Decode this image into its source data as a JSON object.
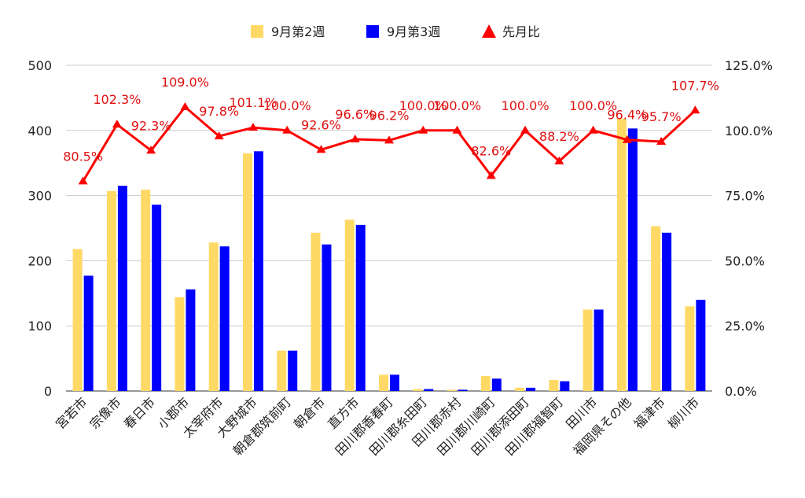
{
  "chart_data": {
    "type": "bar",
    "categories": [
      "宮若市",
      "宗像市",
      "春日市",
      "小郡市",
      "太宰府市",
      "大野城市",
      "朝倉郡筑前町",
      "朝倉市",
      "直方市",
      "田川郡香春町",
      "田川郡糸田町",
      "田川郡赤村",
      "田川郡川崎町",
      "田川郡添田町",
      "田川郡福智町",
      "田川市",
      "福岡県その他",
      "福津市",
      "柳川市"
    ],
    "series": [
      {
        "name": "9月第2週",
        "color": "#ffd966",
        "axis": "left",
        "values": [
          218,
          307,
          309,
          144,
          228,
          365,
          62,
          243,
          263,
          25,
          3,
          2,
          23,
          5,
          17,
          125,
          418,
          253,
          130
        ]
      },
      {
        "name": "9月第3週",
        "color": "#0000ff",
        "axis": "left",
        "values": [
          177,
          315,
          286,
          156,
          222,
          368,
          62,
          225,
          255,
          25,
          3,
          2,
          19,
          5,
          15,
          125,
          403,
          243,
          140
        ]
      },
      {
        "name": "先月比",
        "type": "line",
        "color": "#ff0000",
        "axis": "right",
        "values": [
          80.5,
          102.3,
          92.3,
          109.0,
          97.8,
          101.1,
          100.0,
          92.6,
          96.6,
          96.2,
          100.0,
          100.0,
          82.6,
          100.0,
          88.2,
          100.0,
          96.4,
          95.7,
          107.7
        ],
        "labels": [
          "80.5%",
          "102.3%",
          "92.3%",
          "109.0%",
          "97.8%",
          "101.1%",
          "100.0%",
          "92.6%",
          "96.6%",
          "96.2%",
          "100.0%",
          "100.0%",
          "82.6%",
          "100.0%",
          "88.2%",
          "100.0%",
          "96.4%",
          "95.7%",
          "107.7%"
        ]
      }
    ],
    "left_axis": {
      "range": [
        0,
        500
      ],
      "ticks": [
        "0",
        "100",
        "200",
        "300",
        "400",
        "500"
      ]
    },
    "right_axis": {
      "range": [
        0,
        125
      ],
      "ticks": [
        "0.0%",
        "25.0%",
        "50.0%",
        "75.0%",
        "100.0%",
        "125.0%"
      ]
    },
    "legend": {
      "position": "top",
      "items": [
        "9月第2週",
        "9月第3週",
        "先月比"
      ]
    },
    "grid": true
  }
}
